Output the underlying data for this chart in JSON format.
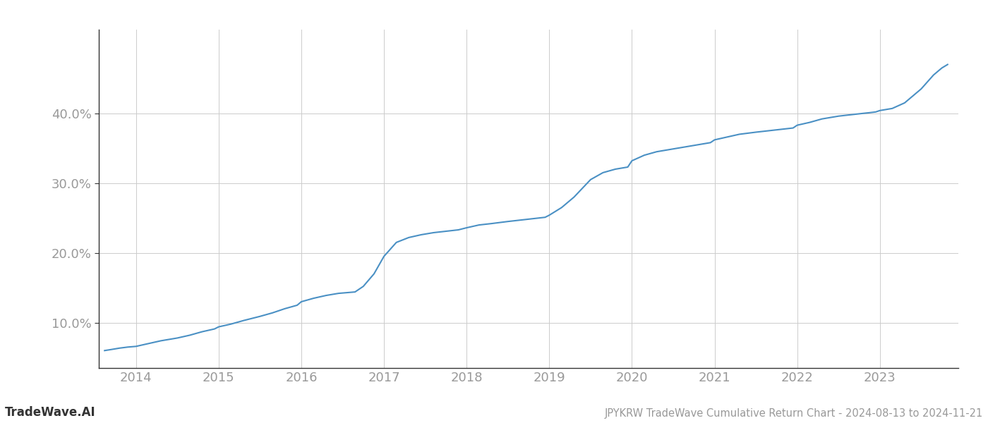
{
  "title": "JPYKRW TradeWave Cumulative Return Chart - 2024-08-13 to 2024-11-21",
  "watermark": "TradeWave.AI",
  "line_color": "#4a90c4",
  "background_color": "#ffffff",
  "grid_color": "#cccccc",
  "x_years": [
    2014,
    2015,
    2016,
    2017,
    2018,
    2019,
    2020,
    2021,
    2022,
    2023
  ],
  "data_x": [
    2013.62,
    2013.7,
    2013.8,
    2013.9,
    2014.0,
    2014.15,
    2014.3,
    2014.5,
    2014.65,
    2014.8,
    2014.95,
    2015.0,
    2015.15,
    2015.3,
    2015.5,
    2015.65,
    2015.8,
    2015.95,
    2016.0,
    2016.15,
    2016.3,
    2016.45,
    2016.55,
    2016.65,
    2016.75,
    2016.88,
    2017.0,
    2017.15,
    2017.3,
    2017.45,
    2017.6,
    2017.75,
    2017.9,
    2018.0,
    2018.15,
    2018.3,
    2018.5,
    2018.65,
    2018.8,
    2018.95,
    2019.0,
    2019.15,
    2019.3,
    2019.5,
    2019.65,
    2019.8,
    2019.95,
    2020.0,
    2020.15,
    2020.3,
    2020.5,
    2020.65,
    2020.8,
    2020.95,
    2021.0,
    2021.15,
    2021.3,
    2021.5,
    2021.65,
    2021.8,
    2021.95,
    2022.0,
    2022.15,
    2022.3,
    2022.5,
    2022.65,
    2022.8,
    2022.88,
    2022.95,
    2023.0,
    2023.15,
    2023.3,
    2023.5,
    2023.65,
    2023.75,
    2023.82
  ],
  "data_y": [
    6.0,
    6.15,
    6.35,
    6.5,
    6.6,
    7.0,
    7.4,
    7.8,
    8.2,
    8.7,
    9.1,
    9.4,
    9.8,
    10.3,
    10.9,
    11.4,
    12.0,
    12.5,
    13.0,
    13.5,
    13.9,
    14.2,
    14.3,
    14.4,
    15.2,
    17.0,
    19.5,
    21.5,
    22.2,
    22.6,
    22.9,
    23.1,
    23.3,
    23.6,
    24.0,
    24.2,
    24.5,
    24.7,
    24.9,
    25.1,
    25.4,
    26.5,
    28.0,
    30.5,
    31.5,
    32.0,
    32.3,
    33.2,
    34.0,
    34.5,
    34.9,
    35.2,
    35.5,
    35.8,
    36.2,
    36.6,
    37.0,
    37.3,
    37.5,
    37.7,
    37.9,
    38.3,
    38.7,
    39.2,
    39.6,
    39.8,
    40.0,
    40.1,
    40.2,
    40.4,
    40.7,
    41.5,
    43.5,
    45.5,
    46.5,
    47.0
  ],
  "yticks": [
    10.0,
    20.0,
    30.0,
    40.0
  ],
  "ylim": [
    3.5,
    52.0
  ],
  "xlim": [
    2013.55,
    2023.95
  ],
  "line_width": 1.5,
  "title_fontsize": 10.5,
  "watermark_fontsize": 12,
  "tick_fontsize": 13,
  "tick_color": "#999999",
  "spine_color": "#333333",
  "watermark_color": "#333333"
}
